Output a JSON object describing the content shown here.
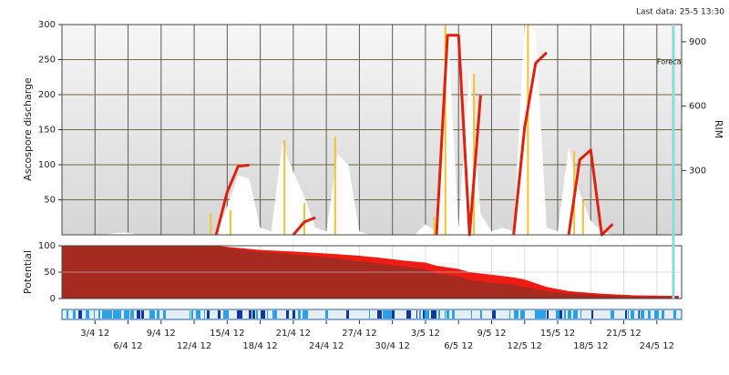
{
  "chart_data": [
    {
      "type": "line",
      "annotation": "Last data: 25-5 13:30",
      "ylabel": "Ascospore discharge",
      "y2label": "RIM",
      "x": [
        91,
        92,
        93,
        94,
        95,
        96,
        97,
        98,
        99,
        100,
        101,
        102,
        103,
        104,
        105,
        106,
        107,
        108,
        109,
        110,
        111,
        112,
        113,
        114,
        115,
        116,
        117,
        118,
        119,
        120,
        121,
        122,
        123,
        124,
        125,
        126,
        127,
        128,
        129,
        130,
        131,
        132,
        133,
        134,
        135,
        136,
        137,
        138,
        139,
        140,
        141,
        142,
        143,
        144,
        145,
        146,
        147
      ],
      "ylim": [
        0,
        300
      ],
      "yticks": [
        50,
        100,
        150,
        200,
        250,
        300
      ],
      "y2lim": [
        0,
        980
      ],
      "y2ticks": [
        300,
        600,
        900
      ],
      "grid": true,
      "forecast": {
        "x": 146.5,
        "label": "Foreca",
        "color": "#8fd8e0"
      },
      "series": [
        {
          "style": "area",
          "color": "#ffffff",
          "values": [
            0,
            0,
            0,
            0,
            0,
            3,
            3,
            0,
            0,
            0,
            0,
            0,
            0,
            0,
            0,
            40,
            85,
            80,
            10,
            5,
            130,
            90,
            55,
            10,
            5,
            115,
            100,
            5,
            0,
            0,
            0,
            0,
            0,
            15,
            5,
            300,
            10,
            235,
            30,
            5,
            10,
            5,
            300,
            290,
            10,
            5,
            125,
            60,
            20,
            5,
            0,
            0,
            0,
            0,
            0,
            0,
            0
          ]
        },
        {
          "style": "spike",
          "color": "#f2c230",
          "x": [
            104.5,
            106.3,
            111.2,
            113,
            115.8,
            124.8,
            125.8,
            128.4,
            133.3,
            137.5,
            138.3
          ],
          "values": [
            30,
            35,
            135,
            45,
            140,
            25,
            300,
            230,
            300,
            120,
            50
          ]
        },
        {
          "style": "line",
          "color": "#e0200f",
          "axis": "y2",
          "values": [
            null,
            null,
            null,
            null,
            null,
            null,
            null,
            null,
            null,
            null,
            null,
            null,
            null,
            null,
            0,
            200,
            320,
            325,
            null,
            null,
            null,
            0,
            60,
            80,
            null,
            null,
            null,
            null,
            null,
            null,
            null,
            null,
            null,
            null,
            0,
            930,
            930,
            0,
            650,
            null,
            null,
            0,
            500,
            800,
            850,
            null,
            0,
            350,
            395,
            0,
            50,
            null,
            null,
            null,
            null,
            null,
            null
          ]
        }
      ]
    },
    {
      "type": "area",
      "ylabel": "Potential",
      "x": [
        91,
        105,
        107,
        109,
        111,
        113,
        116,
        118,
        120,
        122,
        124,
        125,
        127,
        128,
        130,
        132,
        133,
        135,
        137,
        140,
        143,
        147
      ],
      "xlim": [
        91,
        147.25
      ],
      "xticks": [
        {
          "value": 94,
          "label": "3/4 12"
        },
        {
          "value": 97,
          "label": "6/4 12"
        },
        {
          "value": 100,
          "label": "9/4 12"
        },
        {
          "value": 103,
          "label": "12/4 12"
        },
        {
          "value": 106,
          "label": "15/4 12"
        },
        {
          "value": 109,
          "label": "18/4 12"
        },
        {
          "value": 112,
          "label": "21/4 12"
        },
        {
          "value": 115,
          "label": "24/4 12"
        },
        {
          "value": 118,
          "label": "27/4 12"
        },
        {
          "value": 121,
          "label": "30/4 12"
        },
        {
          "value": 124,
          "label": "3/5 12"
        },
        {
          "value": 127,
          "label": "6/5 12"
        },
        {
          "value": 130,
          "label": "9/5 12"
        },
        {
          "value": 133,
          "label": "12/5 12"
        },
        {
          "value": 136,
          "label": "15/5 12"
        },
        {
          "value": 139,
          "label": "18/5 12"
        },
        {
          "value": 142,
          "label": "21/5 12"
        },
        {
          "value": 145,
          "label": "24/5 12"
        }
      ],
      "ylim": [
        0,
        100
      ],
      "yticks": [
        0,
        50,
        100
      ],
      "grid": true,
      "series": [
        {
          "color": "#ee1c14",
          "values": [
            100,
            100,
            96,
            92,
            90,
            88,
            84,
            81,
            77,
            72,
            68,
            62,
            56,
            50,
            45,
            40,
            36,
            22,
            14,
            9,
            6,
            5
          ]
        },
        {
          "color": "#a52a20",
          "values": [
            100,
            100,
            93,
            88,
            86,
            82,
            76,
            71,
            66,
            61,
            55,
            48,
            42,
            35,
            30,
            26,
            22,
            14,
            10,
            6,
            4,
            3
          ]
        }
      ]
    }
  ]
}
